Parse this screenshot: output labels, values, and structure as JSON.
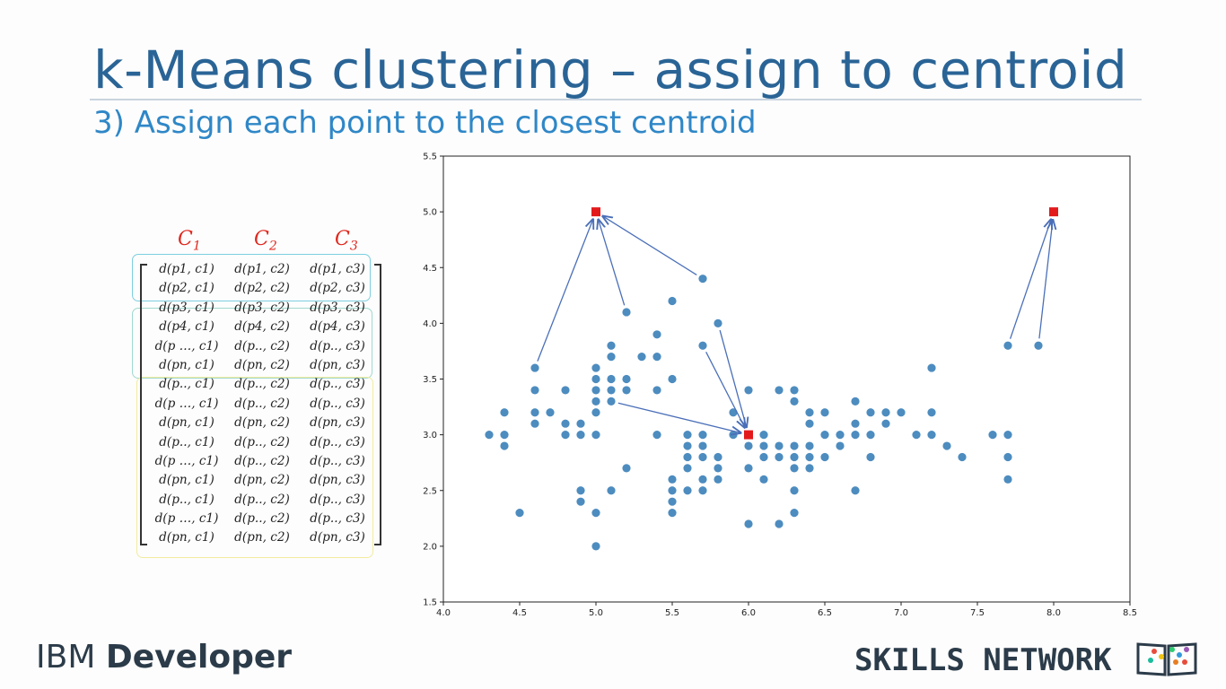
{
  "slide": {
    "title": "k-Means clustering – assign to centroid",
    "subtitle": "3) Assign each point to the closest centroid"
  },
  "matrix": {
    "headers": [
      {
        "base": "C",
        "sub": "1"
      },
      {
        "base": "C",
        "sub": "2"
      },
      {
        "base": "C",
        "sub": "3"
      }
    ],
    "rows": [
      [
        "d(p1, c1)",
        "d(p1, c2)",
        "d(p1, c3)"
      ],
      [
        "d(p2, c1)",
        "d(p2, c2)",
        "d(p2, c3)"
      ],
      [
        "d(p3, c1)",
        "d(p3, c2)",
        "d(p3, c3)"
      ],
      [
        "d(p4, c1)",
        "d(p4, c2)",
        "d(p4, c3)"
      ],
      [
        "d(p …, c1)",
        "d(p.., c2)",
        "d(p.., c3)"
      ],
      [
        "d(pn, c1)",
        "d(pn, c2)",
        "d(pn, c3)"
      ],
      [
        "d(p.., c1)",
        "d(p.., c2)",
        "d(p.., c3)"
      ],
      [
        "d(p …, c1)",
        "d(p.., c2)",
        "d(p.., c3)"
      ],
      [
        "d(pn, c1)",
        "d(pn, c2)",
        "d(pn, c3)"
      ],
      [
        "d(p.., c1)",
        "d(p.., c2)",
        "d(p.., c3)"
      ],
      [
        "d(p …, c1)",
        "d(p.., c2)",
        "d(p.., c3)"
      ],
      [
        "d(pn, c1)",
        "d(pn, c2)",
        "d(pn, c3)"
      ],
      [
        "d(p.., c1)",
        "d(p.., c2)",
        "d(p.., c3)"
      ],
      [
        "d(p …, c1)",
        "d(p.., c2)",
        "d(p.., c3)"
      ],
      [
        "d(pn, c1)",
        "d(pn, c2)",
        "d(pn, c3)"
      ]
    ]
  },
  "chart_data": {
    "type": "scatter",
    "title": "",
    "xlabel": "",
    "ylabel": "",
    "xlim": [
      4.0,
      8.5
    ],
    "ylim": [
      1.5,
      5.5
    ],
    "xticks": [
      "4.0",
      "4.5",
      "5.0",
      "5.5",
      "6.0",
      "6.5",
      "7.0",
      "7.5",
      "8.0",
      "8.5"
    ],
    "yticks": [
      "1.5",
      "2.0",
      "2.5",
      "3.0",
      "3.5",
      "4.0",
      "4.5",
      "5.0",
      "5.5"
    ],
    "grid": false,
    "legend": "none",
    "point_color": "#3a7fb8",
    "centroid_color": "#e31a1c",
    "arrow_color": "#4a6fb8",
    "points": [
      [
        4.3,
        3.0
      ],
      [
        4.4,
        2.9
      ],
      [
        4.4,
        3.0
      ],
      [
        4.4,
        3.2
      ],
      [
        4.5,
        2.3
      ],
      [
        4.6,
        3.1
      ],
      [
        4.6,
        3.2
      ],
      [
        4.6,
        3.4
      ],
      [
        4.6,
        3.6
      ],
      [
        4.7,
        3.2
      ],
      [
        4.8,
        3.0
      ],
      [
        4.8,
        3.1
      ],
      [
        4.8,
        3.4
      ],
      [
        4.9,
        2.4
      ],
      [
        4.9,
        2.5
      ],
      [
        4.9,
        3.0
      ],
      [
        4.9,
        3.1
      ],
      [
        5.0,
        2.0
      ],
      [
        5.0,
        2.3
      ],
      [
        5.0,
        3.0
      ],
      [
        5.0,
        3.2
      ],
      [
        5.0,
        3.3
      ],
      [
        5.0,
        3.4
      ],
      [
        5.0,
        3.5
      ],
      [
        5.0,
        3.6
      ],
      [
        5.1,
        2.5
      ],
      [
        5.1,
        3.3
      ],
      [
        5.1,
        3.4
      ],
      [
        5.1,
        3.5
      ],
      [
        5.1,
        3.7
      ],
      [
        5.1,
        3.8
      ],
      [
        5.2,
        2.7
      ],
      [
        5.2,
        3.4
      ],
      [
        5.2,
        3.5
      ],
      [
        5.2,
        4.1
      ],
      [
        5.3,
        3.7
      ],
      [
        5.4,
        3.0
      ],
      [
        5.4,
        3.4
      ],
      [
        5.4,
        3.7
      ],
      [
        5.4,
        3.9
      ],
      [
        5.5,
        2.3
      ],
      [
        5.5,
        2.4
      ],
      [
        5.5,
        2.5
      ],
      [
        5.5,
        2.6
      ],
      [
        5.5,
        3.5
      ],
      [
        5.5,
        4.2
      ],
      [
        5.6,
        2.5
      ],
      [
        5.6,
        2.7
      ],
      [
        5.6,
        2.8
      ],
      [
        5.6,
        2.9
      ],
      [
        5.6,
        3.0
      ],
      [
        5.7,
        2.5
      ],
      [
        5.7,
        2.6
      ],
      [
        5.7,
        2.8
      ],
      [
        5.7,
        2.9
      ],
      [
        5.7,
        3.0
      ],
      [
        5.7,
        3.8
      ],
      [
        5.7,
        4.4
      ],
      [
        5.8,
        2.6
      ],
      [
        5.8,
        2.7
      ],
      [
        5.8,
        2.8
      ],
      [
        5.8,
        4.0
      ],
      [
        5.9,
        3.0
      ],
      [
        5.9,
        3.2
      ],
      [
        6.0,
        2.2
      ],
      [
        6.0,
        2.7
      ],
      [
        6.0,
        2.9
      ],
      [
        6.0,
        3.4
      ],
      [
        6.1,
        2.6
      ],
      [
        6.1,
        2.8
      ],
      [
        6.1,
        2.9
      ],
      [
        6.1,
        3.0
      ],
      [
        6.2,
        2.2
      ],
      [
        6.2,
        2.8
      ],
      [
        6.2,
        2.9
      ],
      [
        6.2,
        3.4
      ],
      [
        6.3,
        2.3
      ],
      [
        6.3,
        2.5
      ],
      [
        6.3,
        2.7
      ],
      [
        6.3,
        2.8
      ],
      [
        6.3,
        2.9
      ],
      [
        6.3,
        3.3
      ],
      [
        6.3,
        3.4
      ],
      [
        6.4,
        2.7
      ],
      [
        6.4,
        2.8
      ],
      [
        6.4,
        2.9
      ],
      [
        6.4,
        3.1
      ],
      [
        6.4,
        3.2
      ],
      [
        6.5,
        2.8
      ],
      [
        6.5,
        3.0
      ],
      [
        6.5,
        3.2
      ],
      [
        6.6,
        2.9
      ],
      [
        6.6,
        3.0
      ],
      [
        6.7,
        2.5
      ],
      [
        6.7,
        3.0
      ],
      [
        6.7,
        3.1
      ],
      [
        6.7,
        3.3
      ],
      [
        6.8,
        2.8
      ],
      [
        6.8,
        3.0
      ],
      [
        6.8,
        3.2
      ],
      [
        6.9,
        3.1
      ],
      [
        6.9,
        3.2
      ],
      [
        7.0,
        3.2
      ],
      [
        7.1,
        3.0
      ],
      [
        7.2,
        3.0
      ],
      [
        7.2,
        3.2
      ],
      [
        7.2,
        3.6
      ],
      [
        7.3,
        2.9
      ],
      [
        7.4,
        2.8
      ],
      [
        7.6,
        3.0
      ],
      [
        7.7,
        2.6
      ],
      [
        7.7,
        2.8
      ],
      [
        7.7,
        3.0
      ],
      [
        7.7,
        3.8
      ],
      [
        7.9,
        3.8
      ]
    ],
    "centroids": [
      [
        5.0,
        5.0
      ],
      [
        6.0,
        3.0
      ],
      [
        8.0,
        5.0
      ]
    ],
    "arrows": [
      {
        "from": [
          4.6,
          3.6
        ],
        "to": [
          5.0,
          5.0
        ]
      },
      {
        "from": [
          5.2,
          4.1
        ],
        "to": [
          5.0,
          5.0
        ]
      },
      {
        "from": [
          5.7,
          4.4
        ],
        "to": [
          5.0,
          5.0
        ]
      },
      {
        "from": [
          5.8,
          4.0
        ],
        "to": [
          6.0,
          3.0
        ]
      },
      {
        "from": [
          5.7,
          3.8
        ],
        "to": [
          6.0,
          3.0
        ]
      },
      {
        "from": [
          5.1,
          3.3
        ],
        "to": [
          6.0,
          3.0
        ]
      },
      {
        "from": [
          7.7,
          3.8
        ],
        "to": [
          8.0,
          5.0
        ]
      },
      {
        "from": [
          7.9,
          3.8
        ],
        "to": [
          8.0,
          5.0
        ]
      }
    ]
  },
  "footer": {
    "brand_left_light": "IBM",
    "brand_left_bold": "Developer",
    "brand_right": "SKILLS NETWORK"
  },
  "icons": {
    "skills_logo": "open-book-icon"
  }
}
